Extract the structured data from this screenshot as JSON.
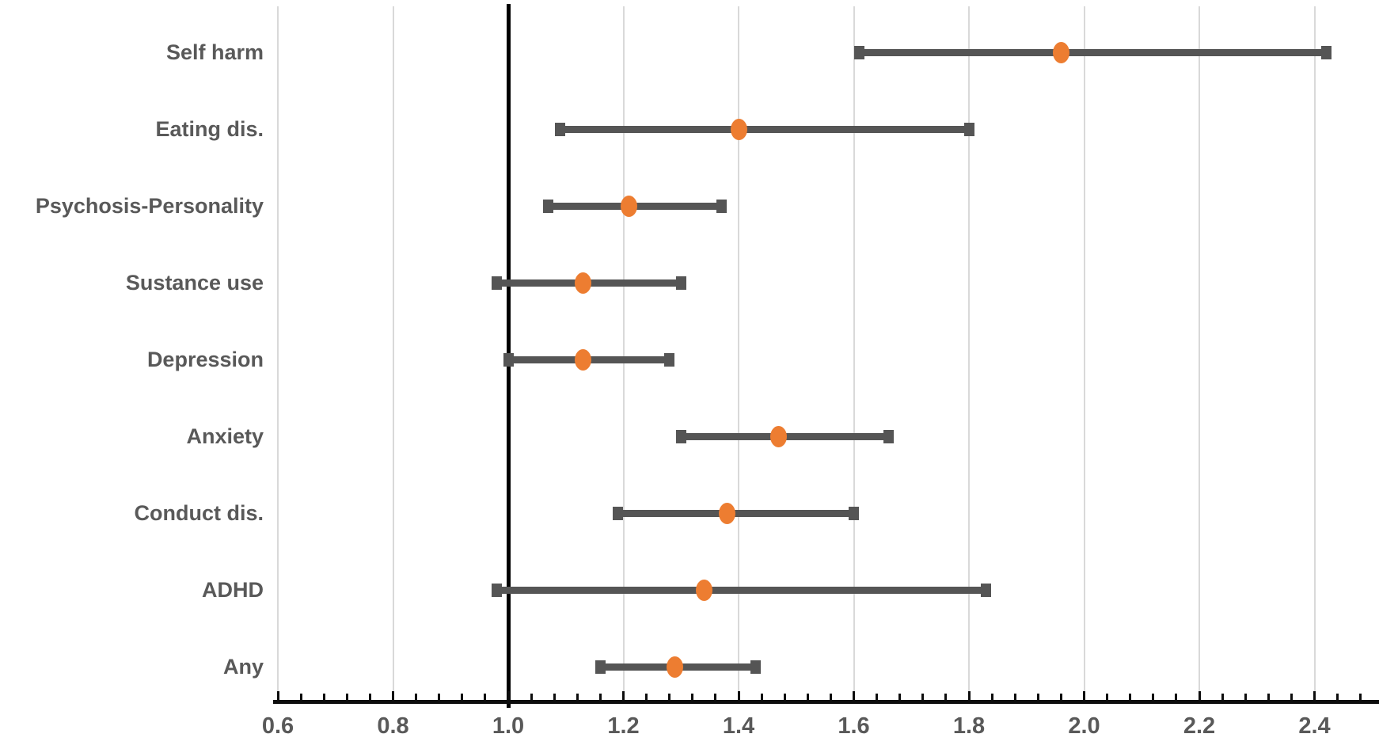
{
  "chart_data": {
    "type": "scatter",
    "subtype": "horizontal-forest-plot-with-error-bars",
    "title": "",
    "xlabel": "",
    "ylabel": "",
    "legend": "none",
    "grid": "vertical-major-gridlines",
    "reference_line_x": 1.0,
    "categories": [
      "Self harm",
      "Eating dis.",
      "Psychosis-Personality",
      "Sustance use",
      "Depression",
      "Anxiety",
      "Conduct dis.",
      "ADHD",
      "Any"
    ],
    "rows": [
      {
        "label": "Self harm",
        "low": 1.61,
        "value": 1.96,
        "high": 2.42
      },
      {
        "label": "Eating dis.",
        "low": 1.09,
        "value": 1.4,
        "high": 1.8
      },
      {
        "label": "Psychosis-Personality",
        "low": 1.07,
        "value": 1.21,
        "high": 1.37
      },
      {
        "label": "Sustance use",
        "low": 0.98,
        "value": 1.13,
        "high": 1.3
      },
      {
        "label": "Depression",
        "low": 1.0,
        "value": 1.13,
        "high": 1.28
      },
      {
        "label": "Anxiety",
        "low": 1.3,
        "value": 1.47,
        "high": 1.66
      },
      {
        "label": "Conduct dis.",
        "low": 1.19,
        "value": 1.38,
        "high": 1.6
      },
      {
        "label": "ADHD",
        "low": 0.98,
        "value": 1.34,
        "high": 1.83
      },
      {
        "label": "Any",
        "low": 1.16,
        "value": 1.29,
        "high": 1.43
      }
    ],
    "x_axis": {
      "min": 0.6,
      "max": 2.51,
      "major_tick_values": [
        0.6,
        0.8,
        1.0,
        1.2,
        1.4,
        1.6,
        1.8,
        2.0,
        2.2,
        2.4
      ],
      "major_tick_labels": [
        "0.6",
        "0.8",
        "1.0",
        "1.2",
        "1.4",
        "1.6",
        "1.8",
        "2.0",
        "2.2",
        "2.4"
      ],
      "minor_tick_step": 0.04
    },
    "colors": {
      "marker": "#ED7D31",
      "error_bar": "#555555",
      "gridline": "#D9D9D9",
      "axis": "#0D0D0D",
      "reference_line": "#000000",
      "label_text": "#595959"
    }
  }
}
